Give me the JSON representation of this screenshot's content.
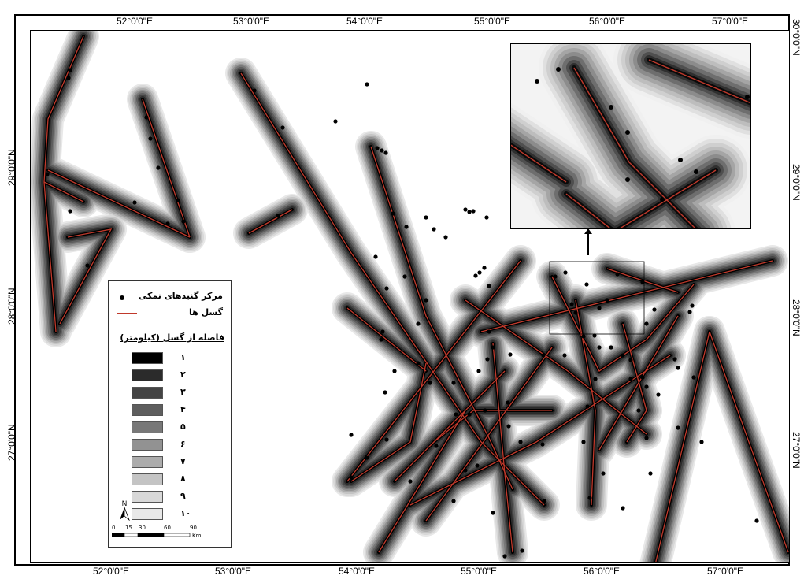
{
  "map": {
    "top_ticks": [
      "52°0'0\"E",
      "53°0'0\"E",
      "54°0'0\"E",
      "55°0'0\"E",
      "56°0'0\"E",
      "57°0'0\"E"
    ],
    "bottom_ticks": [
      "52°0'0\"E",
      "53°0'0\"E",
      "54°0'0\"E",
      "55°0'0\"E",
      "56°0'0\"E",
      "57°0'0\"E"
    ],
    "left_ticks": [
      "29°0'0\"N",
      "28°0'0\"N",
      "27°0'0\"N"
    ],
    "right_ticks": [
      "30°0'0\"N",
      "29°0'0\"N",
      "28°0'0\"N",
      "27°0'0\"N"
    ],
    "fault_color": "#c0392b",
    "point_color": "#000000"
  },
  "legend": {
    "salt_dome_label": "مرکز گنبدهای نمکی",
    "fault_label": "گسل ها",
    "distance_title": "فاصله از گسل (کیلومتر)",
    "classes": [
      {
        "label": "١",
        "color": "#000000"
      },
      {
        "label": "٢",
        "color": "#2b2b2b"
      },
      {
        "label": "٣",
        "color": "#444444"
      },
      {
        "label": "۴",
        "color": "#5e5e5e"
      },
      {
        "label": "۵",
        "color": "#787878"
      },
      {
        "label": "۶",
        "color": "#929292"
      },
      {
        "label": "٧",
        "color": "#acacac"
      },
      {
        "label": "٨",
        "color": "#c4c4c4"
      },
      {
        "label": "٩",
        "color": "#d8d8d8"
      },
      {
        "label": "١٠",
        "color": "#e8e8e8"
      }
    ],
    "north_label": "N",
    "scale_numbers": [
      "0",
      "15",
      "30",
      "60",
      "90"
    ],
    "scale_unit": "Km",
    "north_icon": "north-arrow-icon"
  }
}
